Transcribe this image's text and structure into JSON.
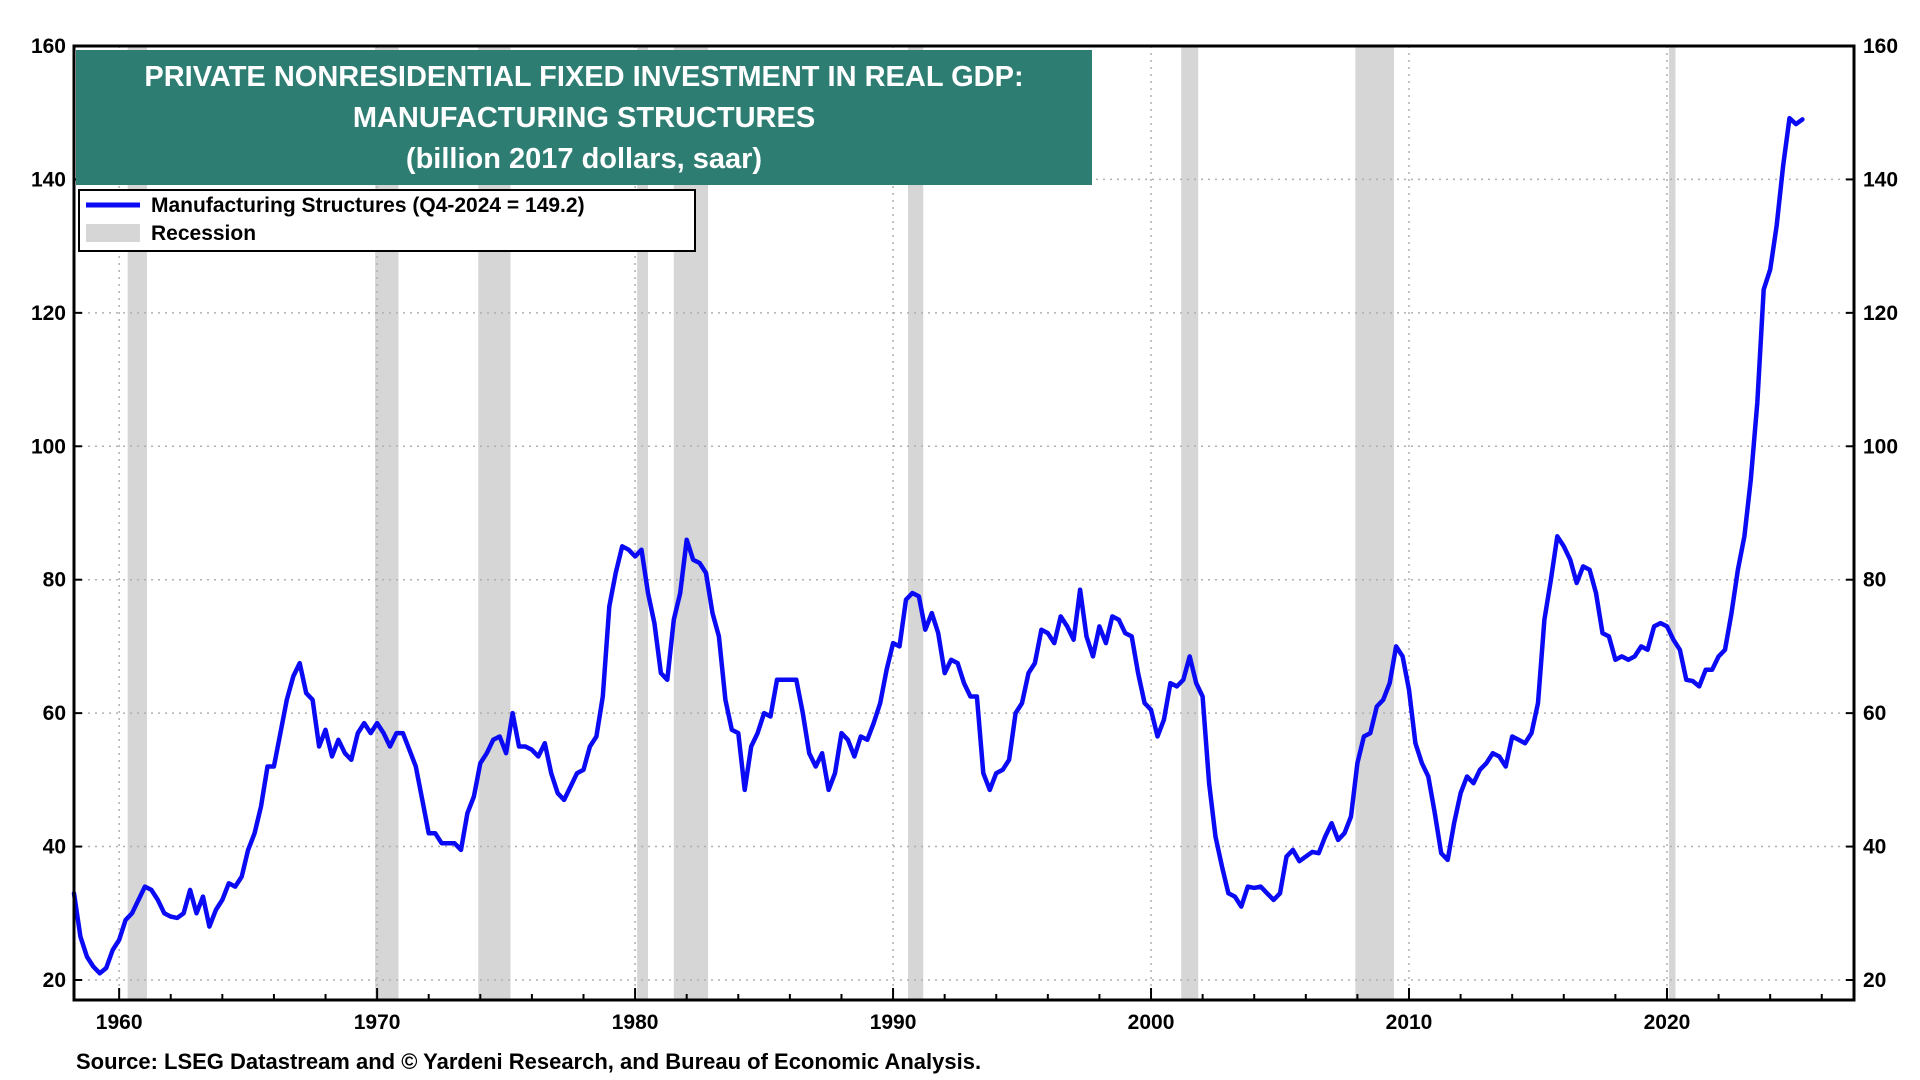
{
  "chart_data": {
    "type": "line",
    "title_lines": [
      "PRIVATE NONRESIDENTIAL FIXED INVESTMENT IN REAL GDP:",
      "MANUFACTURING STRUCTURES",
      "(billion 2017 dollars, saar)"
    ],
    "legend": {
      "series_label": "Manufacturing Structures  (Q4-2024 = 149.2)",
      "recession_label": "Recession"
    },
    "source": "Source: LSEG Datastream and © Yardeni Research, and Bureau of Economic Analysis.",
    "xlim": [
      1958.25,
      2027.25
    ],
    "ylim": [
      17,
      160
    ],
    "x_ticks": [
      1960,
      1970,
      1980,
      1990,
      2000,
      2010,
      2020
    ],
    "y_ticks": [
      20,
      40,
      60,
      80,
      100,
      120,
      140,
      160
    ],
    "grid": true,
    "legend_position": "top-left",
    "colors": {
      "series": "#0a0af5",
      "recession": "#d6d6d6",
      "title_bg": "#2e7d72",
      "title_text": "#ffffff"
    },
    "recessions": [
      [
        1960.33,
        1961.08
      ],
      [
        1969.92,
        1970.83
      ],
      [
        1973.92,
        1975.17
      ],
      [
        1980.08,
        1980.5
      ],
      [
        1981.5,
        1982.83
      ],
      [
        1990.58,
        1991.17
      ],
      [
        2001.17,
        2001.83
      ],
      [
        2007.92,
        2009.42
      ],
      [
        2020.08,
        2020.33
      ]
    ],
    "series": [
      {
        "name": "Manufacturing Structures",
        "points": [
          [
            1958.25,
            33.0
          ],
          [
            1958.5,
            26.5
          ],
          [
            1958.75,
            23.5
          ],
          [
            1959.0,
            22.0
          ],
          [
            1959.25,
            21.0
          ],
          [
            1959.5,
            21.8
          ],
          [
            1959.75,
            24.5
          ],
          [
            1960.0,
            26.0
          ],
          [
            1960.25,
            29.0
          ],
          [
            1960.5,
            30.0
          ],
          [
            1960.75,
            32.0
          ],
          [
            1961.0,
            34.0
          ],
          [
            1961.25,
            33.5
          ],
          [
            1961.5,
            32.0
          ],
          [
            1961.75,
            30.0
          ],
          [
            1962.0,
            29.5
          ],
          [
            1962.25,
            29.3
          ],
          [
            1962.5,
            30.0
          ],
          [
            1962.75,
            33.5
          ],
          [
            1963.0,
            30.0
          ],
          [
            1963.25,
            32.5
          ],
          [
            1963.5,
            28.0
          ],
          [
            1963.75,
            30.5
          ],
          [
            1964.0,
            32.0
          ],
          [
            1964.25,
            34.5
          ],
          [
            1964.5,
            34.0
          ],
          [
            1964.75,
            35.5
          ],
          [
            1965.0,
            39.5
          ],
          [
            1965.25,
            42.0
          ],
          [
            1965.5,
            46.0
          ],
          [
            1965.75,
            52.0
          ],
          [
            1966.0,
            52.0
          ],
          [
            1966.25,
            57.0
          ],
          [
            1966.5,
            62.0
          ],
          [
            1966.75,
            65.5
          ],
          [
            1967.0,
            67.5
          ],
          [
            1967.25,
            63.0
          ],
          [
            1967.5,
            62.0
          ],
          [
            1967.75,
            55.0
          ],
          [
            1968.0,
            57.5
          ],
          [
            1968.25,
            53.5
          ],
          [
            1968.5,
            56.0
          ],
          [
            1968.75,
            54.0
          ],
          [
            1969.0,
            53.0
          ],
          [
            1969.25,
            57.0
          ],
          [
            1969.5,
            58.5
          ],
          [
            1969.75,
            57.0
          ],
          [
            1970.0,
            58.5
          ],
          [
            1970.25,
            57.0
          ],
          [
            1970.5,
            55.0
          ],
          [
            1970.75,
            57.0
          ],
          [
            1971.0,
            57.0
          ],
          [
            1971.25,
            54.5
          ],
          [
            1971.5,
            52.0
          ],
          [
            1971.75,
            47.0
          ],
          [
            1972.0,
            42.0
          ],
          [
            1972.25,
            42.0
          ],
          [
            1972.5,
            40.5
          ],
          [
            1972.75,
            40.5
          ],
          [
            1973.0,
            40.5
          ],
          [
            1973.25,
            39.5
          ],
          [
            1973.5,
            45.0
          ],
          [
            1973.75,
            47.5
          ],
          [
            1974.0,
            52.5
          ],
          [
            1974.25,
            54.0
          ],
          [
            1974.5,
            56.0
          ],
          [
            1974.75,
            56.5
          ],
          [
            1975.0,
            54.0
          ],
          [
            1975.25,
            60.0
          ],
          [
            1975.5,
            55.0
          ],
          [
            1975.75,
            55.0
          ],
          [
            1976.0,
            54.5
          ],
          [
            1976.25,
            53.5
          ],
          [
            1976.5,
            55.5
          ],
          [
            1976.75,
            51.0
          ],
          [
            1977.0,
            48.0
          ],
          [
            1977.25,
            47.0
          ],
          [
            1977.5,
            49.0
          ],
          [
            1977.75,
            51.0
          ],
          [
            1978.0,
            51.5
          ],
          [
            1978.25,
            55.0
          ],
          [
            1978.5,
            56.5
          ],
          [
            1978.75,
            62.5
          ],
          [
            1979.0,
            76.0
          ],
          [
            1979.25,
            81.0
          ],
          [
            1979.5,
            85.0
          ],
          [
            1979.75,
            84.5
          ],
          [
            1980.0,
            83.5
          ],
          [
            1980.25,
            84.5
          ],
          [
            1980.5,
            78.0
          ],
          [
            1980.75,
            73.5
          ],
          [
            1981.0,
            66.0
          ],
          [
            1981.25,
            65.0
          ],
          [
            1981.5,
            74.0
          ],
          [
            1981.75,
            78.0
          ],
          [
            1982.0,
            86.0
          ],
          [
            1982.25,
            83.0
          ],
          [
            1982.5,
            82.5
          ],
          [
            1982.75,
            81.0
          ],
          [
            1983.0,
            75.0
          ],
          [
            1983.25,
            71.5
          ],
          [
            1983.5,
            62.0
          ],
          [
            1983.75,
            57.5
          ],
          [
            1984.0,
            57.0
          ],
          [
            1984.25,
            48.5
          ],
          [
            1984.5,
            55.0
          ],
          [
            1984.75,
            57.0
          ],
          [
            1985.0,
            60.0
          ],
          [
            1985.25,
            59.5
          ],
          [
            1985.5,
            65.0
          ],
          [
            1985.75,
            65.0
          ],
          [
            1986.0,
            65.0
          ],
          [
            1986.25,
            65.0
          ],
          [
            1986.5,
            60.0
          ],
          [
            1986.75,
            54.0
          ],
          [
            1987.0,
            52.0
          ],
          [
            1987.25,
            54.0
          ],
          [
            1987.5,
            48.5
          ],
          [
            1987.75,
            51.0
          ],
          [
            1988.0,
            57.0
          ],
          [
            1988.25,
            56.0
          ],
          [
            1988.5,
            53.5
          ],
          [
            1988.75,
            56.5
          ],
          [
            1989.0,
            56.0
          ],
          [
            1989.25,
            58.5
          ],
          [
            1989.5,
            61.5
          ],
          [
            1989.75,
            66.5
          ],
          [
            1990.0,
            70.5
          ],
          [
            1990.25,
            70.0
          ],
          [
            1990.5,
            77.0
          ],
          [
            1990.75,
            78.0
          ],
          [
            1991.0,
            77.5
          ],
          [
            1991.25,
            72.5
          ],
          [
            1991.5,
            75.0
          ],
          [
            1991.75,
            72.0
          ],
          [
            1992.0,
            66.0
          ],
          [
            1992.25,
            68.0
          ],
          [
            1992.5,
            67.5
          ],
          [
            1992.75,
            64.5
          ],
          [
            1993.0,
            62.5
          ],
          [
            1993.25,
            62.5
          ],
          [
            1993.5,
            51.0
          ],
          [
            1993.75,
            48.5
          ],
          [
            1994.0,
            51.0
          ],
          [
            1994.25,
            51.5
          ],
          [
            1994.5,
            53.0
          ],
          [
            1994.75,
            60.0
          ],
          [
            1995.0,
            61.5
          ],
          [
            1995.25,
            66.0
          ],
          [
            1995.5,
            67.5
          ],
          [
            1995.75,
            72.5
          ],
          [
            1996.0,
            72.0
          ],
          [
            1996.25,
            70.5
          ],
          [
            1996.5,
            74.5
          ],
          [
            1996.75,
            73.0
          ],
          [
            1997.0,
            71.0
          ],
          [
            1997.25,
            78.5
          ],
          [
            1997.5,
            71.5
          ],
          [
            1997.75,
            68.5
          ],
          [
            1998.0,
            73.0
          ],
          [
            1998.25,
            70.5
          ],
          [
            1998.5,
            74.5
          ],
          [
            1998.75,
            74.0
          ],
          [
            1999.0,
            72.0
          ],
          [
            1999.25,
            71.5
          ],
          [
            1999.5,
            66.0
          ],
          [
            1999.75,
            61.5
          ],
          [
            2000.0,
            60.5
          ],
          [
            2000.25,
            56.5
          ],
          [
            2000.5,
            59.0
          ],
          [
            2000.75,
            64.5
          ],
          [
            2001.0,
            64.0
          ],
          [
            2001.25,
            65.0
          ],
          [
            2001.5,
            68.5
          ],
          [
            2001.75,
            64.5
          ],
          [
            2002.0,
            62.5
          ],
          [
            2002.25,
            49.5
          ],
          [
            2002.5,
            41.5
          ],
          [
            2002.75,
            37.0
          ],
          [
            2003.0,
            33.0
          ],
          [
            2003.25,
            32.5
          ],
          [
            2003.5,
            31.0
          ],
          [
            2003.75,
            34.0
          ],
          [
            2004.0,
            33.8
          ],
          [
            2004.25,
            34.0
          ],
          [
            2004.5,
            33.0
          ],
          [
            2004.75,
            32.0
          ],
          [
            2005.0,
            33.0
          ],
          [
            2005.25,
            38.5
          ],
          [
            2005.5,
            39.5
          ],
          [
            2005.75,
            37.8
          ],
          [
            2006.0,
            38.5
          ],
          [
            2006.25,
            39.2
          ],
          [
            2006.5,
            39.0
          ],
          [
            2006.75,
            41.5
          ],
          [
            2007.0,
            43.5
          ],
          [
            2007.25,
            41.0
          ],
          [
            2007.5,
            42.0
          ],
          [
            2007.75,
            44.5
          ],
          [
            2008.0,
            52.5
          ],
          [
            2008.25,
            56.5
          ],
          [
            2008.5,
            57.0
          ],
          [
            2008.75,
            61.0
          ],
          [
            2009.0,
            62.0
          ],
          [
            2009.25,
            64.5
          ],
          [
            2009.5,
            70.0
          ],
          [
            2009.75,
            68.5
          ],
          [
            2010.0,
            63.5
          ],
          [
            2010.25,
            55.5
          ],
          [
            2010.5,
            52.5
          ],
          [
            2010.75,
            50.5
          ],
          [
            2011.0,
            45.0
          ],
          [
            2011.25,
            39.0
          ],
          [
            2011.5,
            38.0
          ],
          [
            2011.75,
            43.5
          ],
          [
            2012.0,
            48.0
          ],
          [
            2012.25,
            50.5
          ],
          [
            2012.5,
            49.5
          ],
          [
            2012.75,
            51.5
          ],
          [
            2013.0,
            52.5
          ],
          [
            2013.25,
            54.0
          ],
          [
            2013.5,
            53.5
          ],
          [
            2013.75,
            52.0
          ],
          [
            2014.0,
            56.5
          ],
          [
            2014.25,
            56.0
          ],
          [
            2014.5,
            55.5
          ],
          [
            2014.75,
            57.0
          ],
          [
            2015.0,
            61.5
          ],
          [
            2015.25,
            74.0
          ],
          [
            2015.5,
            80.0
          ],
          [
            2015.75,
            86.5
          ],
          [
            2016.0,
            85.0
          ],
          [
            2016.25,
            83.0
          ],
          [
            2016.5,
            79.5
          ],
          [
            2016.75,
            82.0
          ],
          [
            2017.0,
            81.5
          ],
          [
            2017.25,
            78.0
          ],
          [
            2017.5,
            72.0
          ],
          [
            2017.75,
            71.5
          ],
          [
            2018.0,
            68.0
          ],
          [
            2018.25,
            68.5
          ],
          [
            2018.5,
            68.0
          ],
          [
            2018.75,
            68.5
          ],
          [
            2019.0,
            70.0
          ],
          [
            2019.25,
            69.5
          ],
          [
            2019.5,
            73.0
          ],
          [
            2019.75,
            73.5
          ],
          [
            2020.0,
            73.0
          ],
          [
            2020.25,
            71.0
          ],
          [
            2020.5,
            69.5
          ],
          [
            2020.75,
            65.0
          ],
          [
            2021.0,
            64.8
          ],
          [
            2021.25,
            64.0
          ],
          [
            2021.5,
            66.5
          ],
          [
            2021.75,
            66.5
          ],
          [
            2022.0,
            68.5
          ],
          [
            2022.25,
            69.5
          ],
          [
            2022.5,
            75.0
          ],
          [
            2022.75,
            81.5
          ],
          [
            2023.0,
            86.5
          ],
          [
            2023.25,
            95.0
          ],
          [
            2023.5,
            106.5
          ],
          [
            2023.75,
            123.5
          ],
          [
            2024.0,
            126.5
          ],
          [
            2024.25,
            133.0
          ],
          [
            2024.5,
            142.0
          ],
          [
            2024.75,
            149.2
          ],
          [
            2025.0,
            148.3
          ],
          [
            2025.25,
            149.0
          ]
        ]
      }
    ]
  }
}
